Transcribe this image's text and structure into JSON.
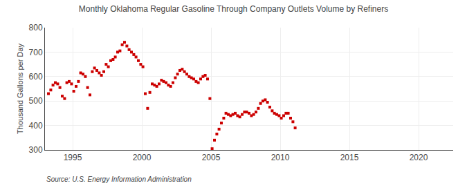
{
  "chart_data": {
    "type": "scatter",
    "title": "Monthly Oklahoma Regular Gasoline Through Company Outlets Volume by Refiners",
    "ylabel": "Thousand Gallons per Day",
    "annotations": [
      "Source: U.S. Energy Information Administration"
    ],
    "color": "#cc0000",
    "marker": "square",
    "grid": true,
    "xlim": [
      1993.0,
      2022.5
    ],
    "xticks": [
      1995,
      2000,
      2005,
      2010,
      2015,
      2020
    ],
    "ylim": [
      300,
      800
    ],
    "yticks": [
      300,
      400,
      500,
      600,
      700,
      800
    ],
    "x": [
      1993.25,
      1993.42,
      1993.58,
      1993.75,
      1993.92,
      1994.08,
      1994.25,
      1994.42,
      1994.58,
      1994.75,
      1994.92,
      1995.08,
      1995.25,
      1995.42,
      1995.58,
      1995.75,
      1995.92,
      1996.08,
      1996.25,
      1996.42,
      1996.58,
      1996.75,
      1996.92,
      1997.08,
      1997.25,
      1997.42,
      1997.58,
      1997.75,
      1997.92,
      1998.08,
      1998.25,
      1998.42,
      1998.58,
      1998.75,
      1998.92,
      1999.08,
      1999.25,
      1999.42,
      1999.58,
      1999.75,
      1999.92,
      2000.08,
      2000.25,
      2000.42,
      2000.58,
      2000.75,
      2000.92,
      2001.08,
      2001.25,
      2001.42,
      2001.58,
      2001.75,
      2001.92,
      2002.08,
      2002.25,
      2002.42,
      2002.58,
      2002.75,
      2002.92,
      2003.08,
      2003.25,
      2003.42,
      2003.58,
      2003.75,
      2003.92,
      2004.08,
      2004.25,
      2004.42,
      2004.58,
      2004.75,
      2004.92,
      2005.08,
      2005.25,
      2005.42,
      2005.58,
      2005.75,
      2005.92,
      2006.08,
      2006.25,
      2006.42,
      2006.58,
      2006.75,
      2006.92,
      2007.08,
      2007.25,
      2007.42,
      2007.58,
      2007.75,
      2007.92,
      2008.08,
      2008.25,
      2008.42,
      2008.58,
      2008.75,
      2008.92,
      2009.08,
      2009.25,
      2009.42,
      2009.58,
      2009.75,
      2009.92,
      2010.08,
      2010.25,
      2010.42,
      2010.58,
      2010.75,
      2010.92,
      2011.08
    ],
    "values": [
      530,
      545,
      565,
      575,
      570,
      555,
      520,
      510,
      575,
      580,
      570,
      540,
      560,
      580,
      615,
      610,
      600,
      555,
      525,
      620,
      635,
      625,
      615,
      605,
      620,
      650,
      640,
      665,
      670,
      680,
      700,
      705,
      730,
      740,
      725,
      710,
      700,
      690,
      680,
      665,
      650,
      640,
      530,
      470,
      535,
      570,
      565,
      560,
      570,
      585,
      580,
      575,
      565,
      560,
      575,
      595,
      610,
      625,
      630,
      620,
      610,
      600,
      595,
      590,
      580,
      575,
      590,
      600,
      605,
      590,
      510,
      305,
      340,
      365,
      385,
      410,
      430,
      450,
      445,
      440,
      445,
      450,
      440,
      435,
      445,
      455,
      455,
      450,
      440,
      445,
      455,
      470,
      490,
      500,
      505,
      495,
      475,
      460,
      450,
      445,
      440,
      430,
      440,
      450,
      450,
      430,
      415,
      390
    ]
  }
}
